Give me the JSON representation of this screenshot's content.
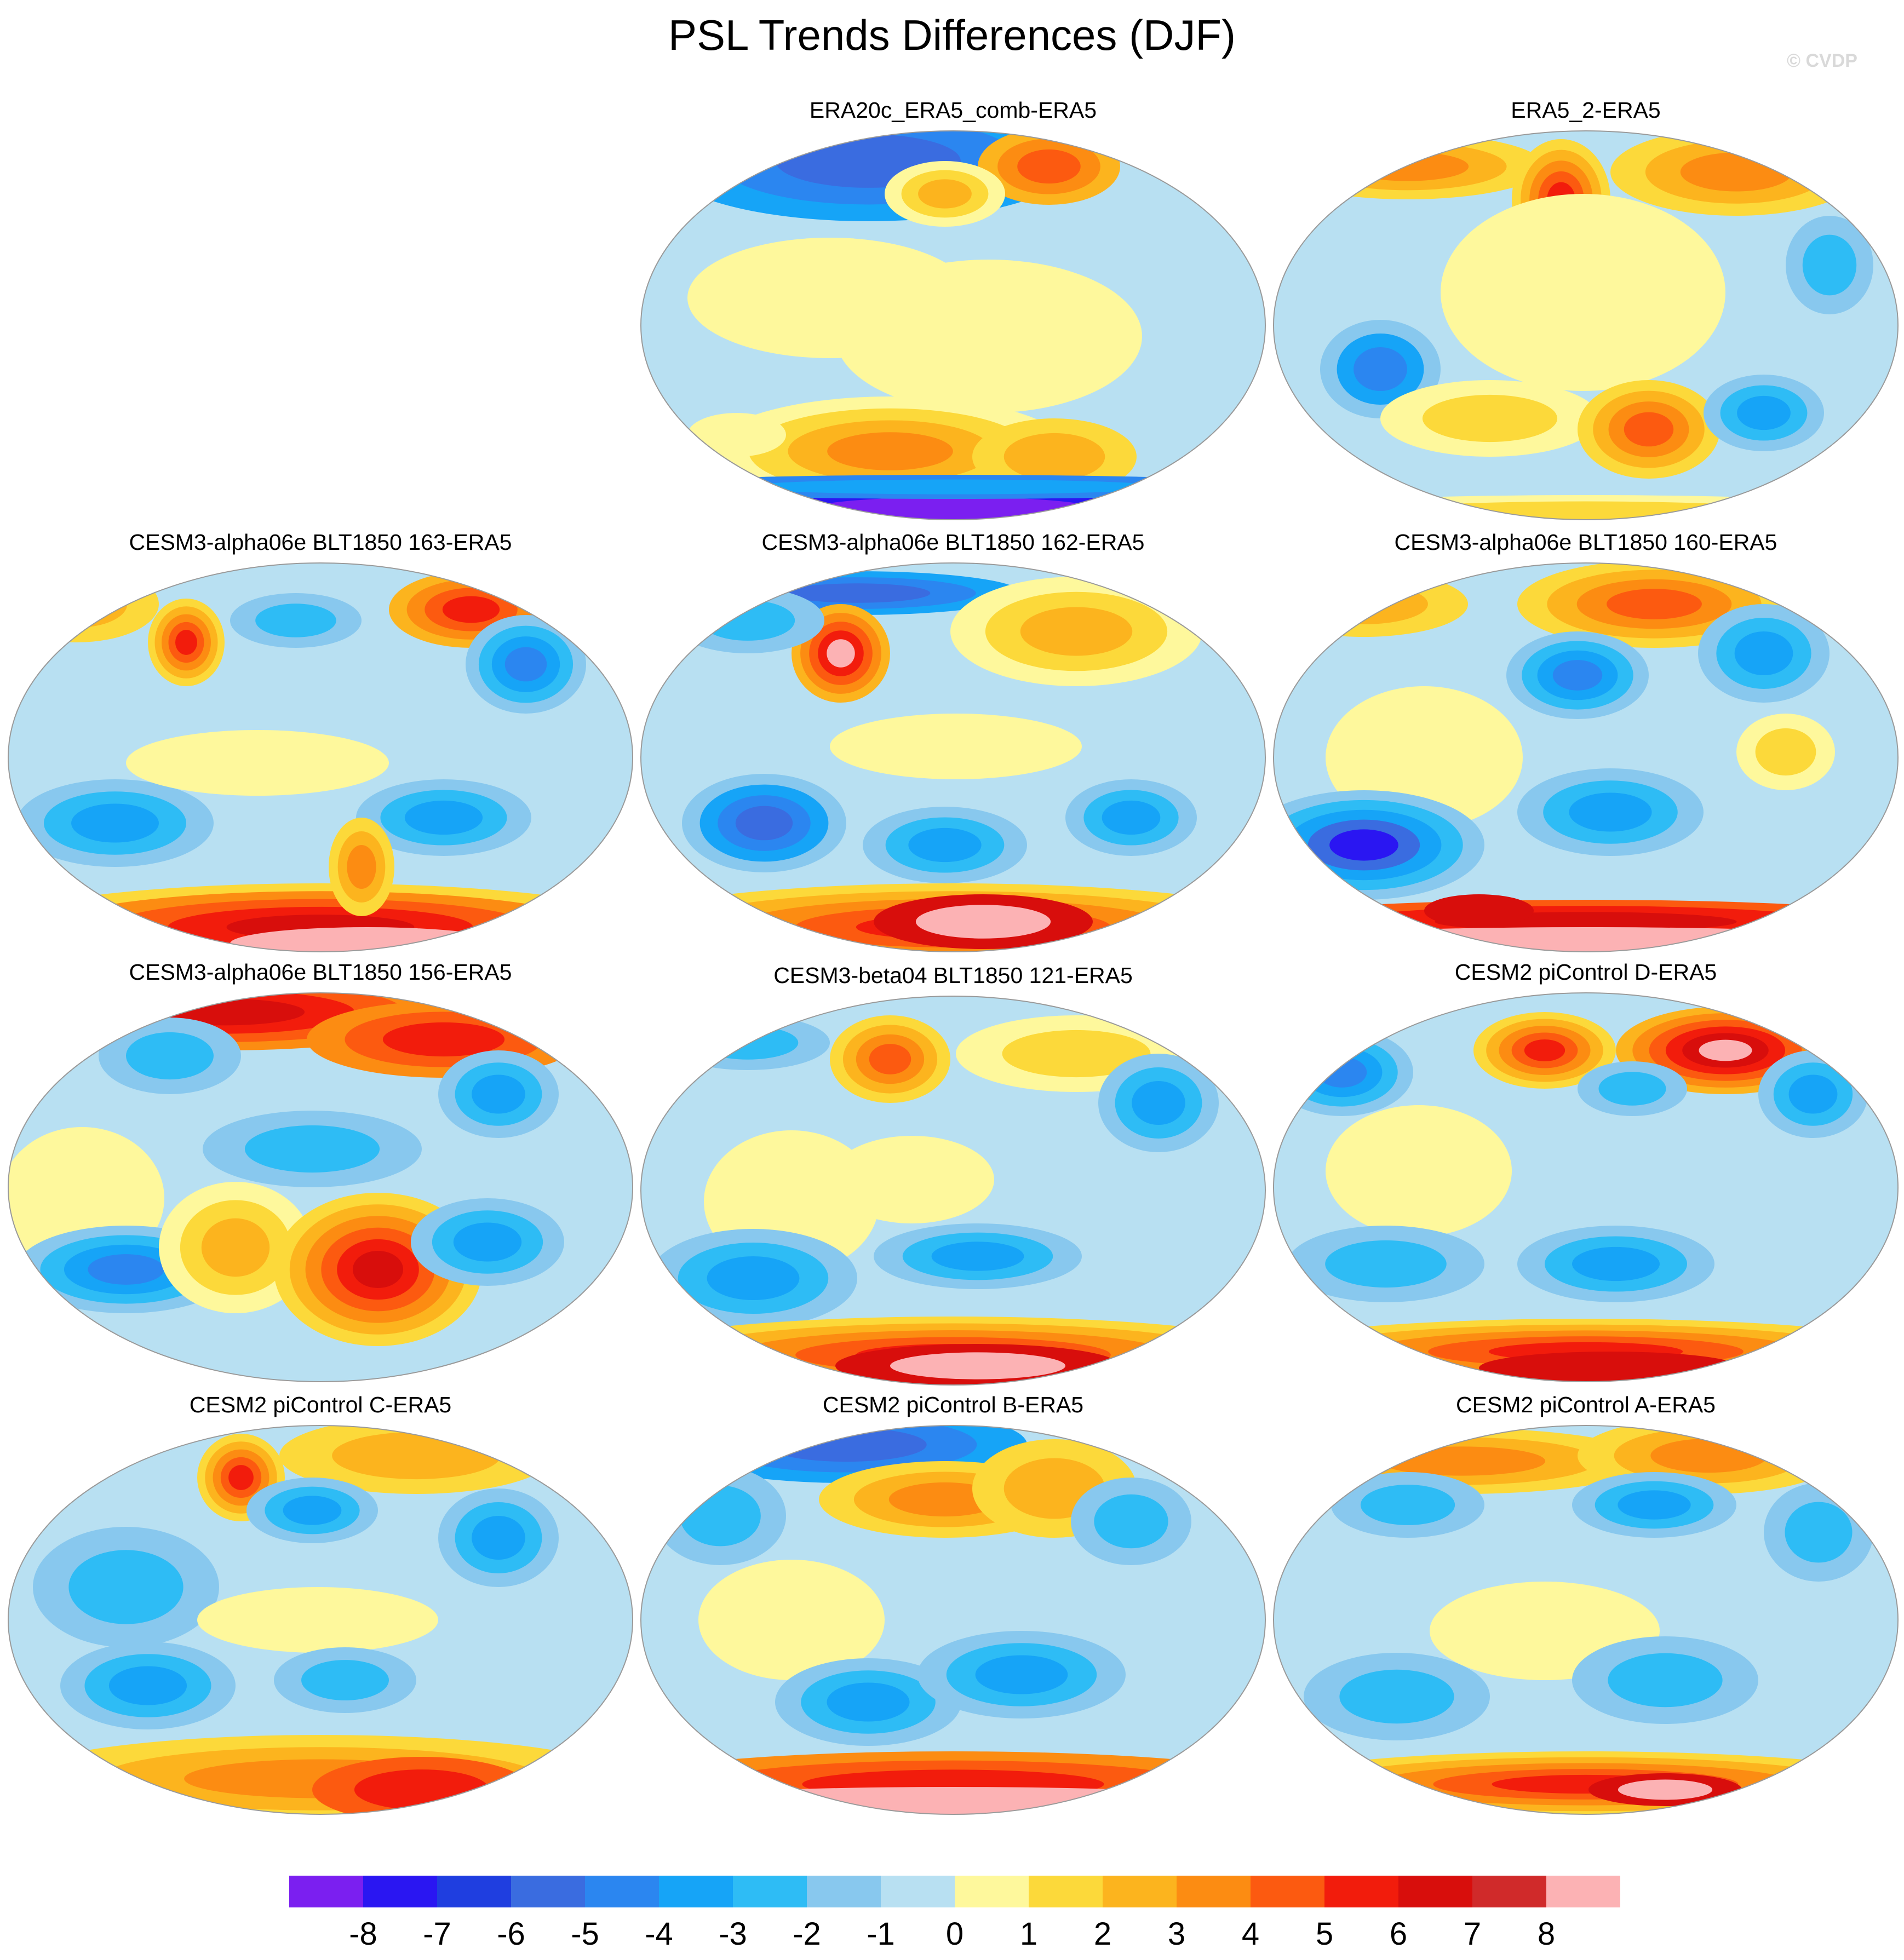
{
  "title": "PSL Trends Differences (DJF)",
  "copyright": "© CVDP",
  "panels": [
    {
      "title": "ERA20c_ERA5_comb-ERA5",
      "pattern": "era20c"
    },
    {
      "title": "ERA5_2-ERA5",
      "pattern": "era5_2"
    },
    {
      "title": "CESM3-alpha06e BLT1850 163-ERA5",
      "pattern": "r163"
    },
    {
      "title": "CESM3-alpha06e BLT1850 162-ERA5",
      "pattern": "r162"
    },
    {
      "title": "CESM3-alpha06e BLT1850 160-ERA5",
      "pattern": "r160"
    },
    {
      "title": "CESM3-alpha06e BLT1850 156-ERA5",
      "pattern": "r156"
    },
    {
      "title": "CESM3-beta04 BLT1850 121-ERA5",
      "pattern": "b121"
    },
    {
      "title": "CESM2 piControl D-ERA5",
      "pattern": "pD"
    },
    {
      "title": "CESM2 piControl C-ERA5",
      "pattern": "pC"
    },
    {
      "title": "CESM2 piControl B-ERA5",
      "pattern": "pB"
    },
    {
      "title": "CESM2 piControl A-ERA5",
      "pattern": "pA"
    }
  ],
  "colorbar": {
    "colors": [
      "#7b1ff0",
      "#2a16f2",
      "#1f3ee0",
      "#3a6ce0",
      "#2b86f0",
      "#16a4f7",
      "#2ebcf5",
      "#88c8ee",
      "#b8e0f2",
      "#fef89c",
      "#fcd93a",
      "#fcb41e",
      "#fc8c12",
      "#fc5a10",
      "#f21c0c",
      "#d80e0c",
      "#d02a2a",
      "#fcb2b4"
    ],
    "ticks": [
      "-8",
      "-7",
      "-6",
      "-5",
      "-4",
      "-3",
      "-2",
      "-1",
      "0",
      "1",
      "2",
      "3",
      "4",
      "5",
      "6",
      "7",
      "8"
    ]
  }
}
